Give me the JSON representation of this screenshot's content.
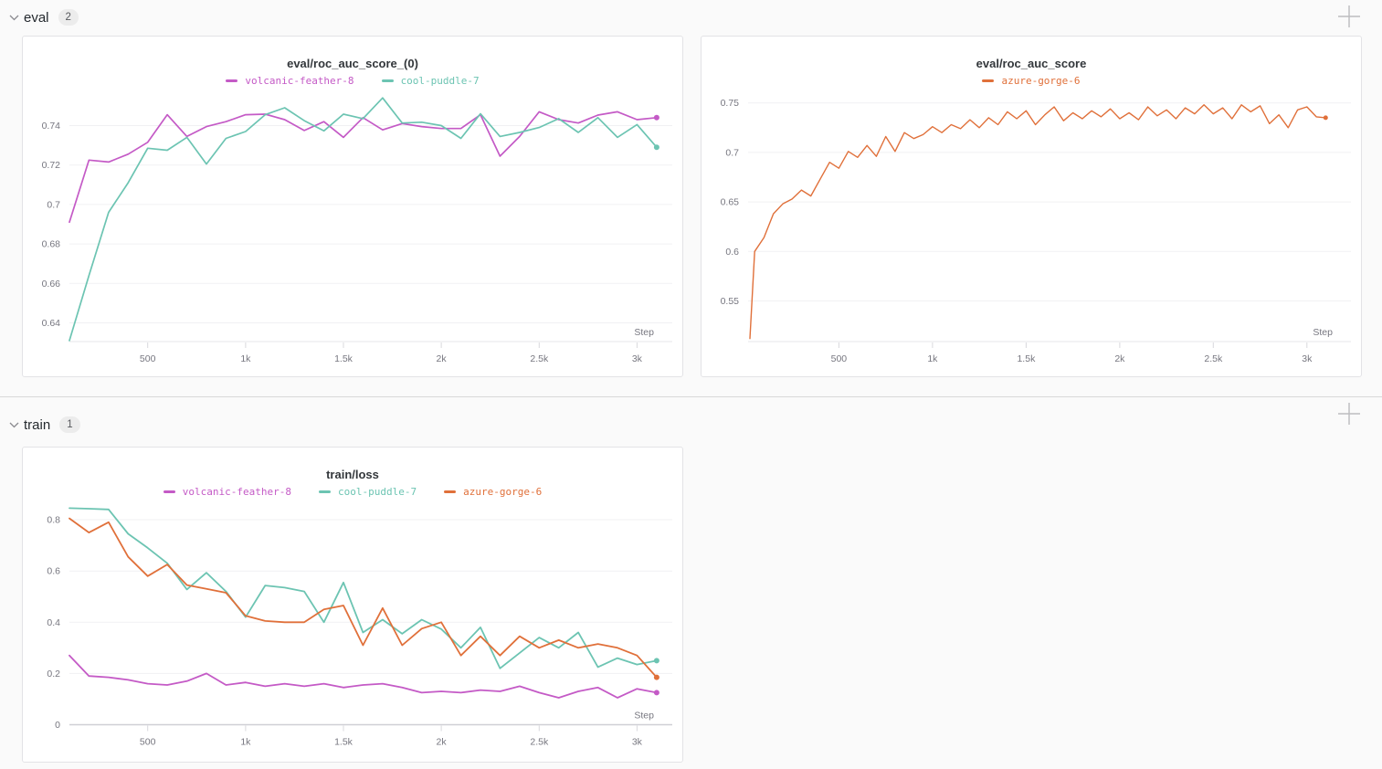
{
  "sections": [
    {
      "title": "eval",
      "count": "2"
    },
    {
      "title": "train",
      "count": "1"
    }
  ],
  "icons": {
    "chevron": "chevron-down-icon",
    "plus": "add-panel-plus-icon"
  },
  "palette": {
    "volcanic-feather-8": "#c45ac6",
    "cool-puddle-7": "#6cc4b2",
    "azure-gorge-6": "#e0703a"
  },
  "chart_data": [
    {
      "type": "line",
      "title": "eval/roc_auc_score_(0)",
      "xlabel": "Step",
      "grid": "horizontal",
      "legend_position": "top",
      "x": [
        100,
        200,
        300,
        400,
        500,
        600,
        700,
        800,
        900,
        1000,
        1100,
        1200,
        1300,
        1400,
        1500,
        1600,
        1700,
        1800,
        1900,
        2000,
        2100,
        2200,
        2300,
        2400,
        2500,
        2600,
        2700,
        2800,
        2900,
        3000,
        3100
      ],
      "series": [
        {
          "name": "volcanic-feather-8",
          "color": "#c45ac6",
          "values": [
            0.691,
            0.7225,
            0.7215,
            0.7255,
            0.7315,
            0.7455,
            0.7345,
            0.7395,
            0.742,
            0.7455,
            0.7458,
            0.743,
            0.7375,
            0.742,
            0.734,
            0.744,
            0.7378,
            0.741,
            0.7395,
            0.7385,
            0.7385,
            0.7455,
            0.7245,
            0.7345,
            0.747,
            0.743,
            0.7413,
            0.7453,
            0.747,
            0.743,
            0.744
          ]
        },
        {
          "name": "cool-puddle-7",
          "color": "#6cc4b2",
          "values": [
            0.631,
            0.664,
            0.696,
            0.711,
            0.7285,
            0.7275,
            0.734,
            0.7205,
            0.7335,
            0.737,
            0.7455,
            0.749,
            0.7425,
            0.7373,
            0.7458,
            0.7435,
            0.754,
            0.7413,
            0.7417,
            0.74,
            0.7335,
            0.746,
            0.7345,
            0.7365,
            0.739,
            0.7435,
            0.7365,
            0.744,
            0.734,
            0.7405,
            0.729
          ]
        }
      ],
      "xlim": [
        100,
        3180
      ],
      "ylim": [
        0.6305,
        0.7555
      ],
      "yticks": [
        0.64,
        0.66,
        0.68,
        0.7,
        0.72,
        0.74
      ],
      "xticks": [
        {
          "v": 500,
          "label": "500"
        },
        {
          "v": 1000,
          "label": "1k"
        },
        {
          "v": 1500,
          "label": "1.5k"
        },
        {
          "v": 2000,
          "label": "2k"
        },
        {
          "v": 2500,
          "label": "2.5k"
        },
        {
          "v": 3000,
          "label": "3k"
        }
      ]
    },
    {
      "type": "line",
      "title": "eval/roc_auc_score",
      "xlabel": "Step",
      "grid": "horizontal",
      "legend_position": "top",
      "x": [
        25,
        50,
        100,
        150,
        200,
        250,
        300,
        350,
        400,
        450,
        500,
        550,
        600,
        650,
        700,
        750,
        800,
        850,
        900,
        950,
        1000,
        1050,
        1100,
        1150,
        1200,
        1250,
        1300,
        1350,
        1400,
        1450,
        1500,
        1550,
        1600,
        1650,
        1700,
        1750,
        1800,
        1850,
        1900,
        1950,
        2000,
        2050,
        2100,
        2150,
        2200,
        2250,
        2300,
        2350,
        2400,
        2450,
        2500,
        2550,
        2600,
        2650,
        2700,
        2750,
        2800,
        2850,
        2900,
        2950,
        3000,
        3050,
        3100
      ],
      "series": [
        {
          "name": "azure-gorge-6",
          "color": "#e0703a",
          "values": [
            0.512,
            0.6,
            0.614,
            0.638,
            0.648,
            0.653,
            0.662,
            0.656,
            0.673,
            0.69,
            0.684,
            0.701,
            0.695,
            0.707,
            0.696,
            0.716,
            0.701,
            0.72,
            0.714,
            0.718,
            0.726,
            0.72,
            0.728,
            0.724,
            0.733,
            0.725,
            0.735,
            0.728,
            0.741,
            0.734,
            0.742,
            0.728,
            0.738,
            0.746,
            0.732,
            0.74,
            0.734,
            0.742,
            0.736,
            0.744,
            0.734,
            0.74,
            0.733,
            0.746,
            0.737,
            0.743,
            0.734,
            0.745,
            0.739,
            0.748,
            0.739,
            0.745,
            0.734,
            0.748,
            0.741,
            0.747,
            0.729,
            0.738,
            0.725,
            0.743,
            0.746,
            0.736,
            0.735
          ]
        }
      ],
      "xlim": [
        15,
        3235
      ],
      "ylim": [
        0.509,
        0.758
      ],
      "yticks": [
        0.55,
        0.6,
        0.65,
        0.7,
        0.75
      ],
      "xticks": [
        {
          "v": 500,
          "label": "500"
        },
        {
          "v": 1000,
          "label": "1k"
        },
        {
          "v": 1500,
          "label": "1.5k"
        },
        {
          "v": 2000,
          "label": "2k"
        },
        {
          "v": 2500,
          "label": "2.5k"
        },
        {
          "v": 3000,
          "label": "3k"
        }
      ]
    },
    {
      "type": "line",
      "title": "train/loss",
      "xlabel": "Step",
      "grid": "horizontal",
      "legend_position": "top",
      "x": [
        100,
        200,
        300,
        400,
        500,
        600,
        700,
        800,
        900,
        1000,
        1100,
        1200,
        1300,
        1400,
        1500,
        1600,
        1700,
        1800,
        1900,
        2000,
        2100,
        2200,
        2300,
        2400,
        2500,
        2600,
        2700,
        2800,
        2900,
        3000,
        3100
      ],
      "series": [
        {
          "name": "volcanic-feather-8",
          "color": "#c45ac6",
          "values": [
            0.27,
            0.19,
            0.185,
            0.175,
            0.16,
            0.155,
            0.17,
            0.2,
            0.155,
            0.165,
            0.15,
            0.16,
            0.15,
            0.16,
            0.145,
            0.155,
            0.16,
            0.145,
            0.125,
            0.13,
            0.125,
            0.135,
            0.13,
            0.15,
            0.125,
            0.105,
            0.13,
            0.145,
            0.105,
            0.14,
            0.125
          ]
        },
        {
          "name": "cool-puddle-7",
          "color": "#6cc4b2",
          "values": [
            0.845,
            0.843,
            0.84,
            0.745,
            0.69,
            0.63,
            0.528,
            0.593,
            0.52,
            0.42,
            0.543,
            0.535,
            0.52,
            0.4,
            0.555,
            0.36,
            0.41,
            0.355,
            0.41,
            0.373,
            0.3,
            0.38,
            0.22,
            0.28,
            0.34,
            0.3,
            0.36,
            0.225,
            0.26,
            0.235,
            0.25
          ]
        },
        {
          "name": "azure-gorge-6",
          "color": "#e0703a",
          "values": [
            0.805,
            0.75,
            0.79,
            0.655,
            0.58,
            0.625,
            0.545,
            0.53,
            0.515,
            0.425,
            0.405,
            0.4,
            0.4,
            0.45,
            0.465,
            0.31,
            0.455,
            0.31,
            0.375,
            0.4,
            0.27,
            0.345,
            0.27,
            0.345,
            0.3,
            0.33,
            0.3,
            0.315,
            0.3,
            0.27,
            0.185
          ]
        }
      ],
      "xlim": [
        100,
        3180
      ],
      "ylim": [
        0,
        0.875
      ],
      "yticks": [
        0,
        0.2,
        0.4,
        0.6,
        0.8
      ],
      "xticks": [
        {
          "v": 500,
          "label": "500"
        },
        {
          "v": 1000,
          "label": "1k"
        },
        {
          "v": 1500,
          "label": "1.5k"
        },
        {
          "v": 2000,
          "label": "2k"
        },
        {
          "v": 2500,
          "label": "2.5k"
        },
        {
          "v": 3000,
          "label": "3k"
        }
      ]
    }
  ]
}
